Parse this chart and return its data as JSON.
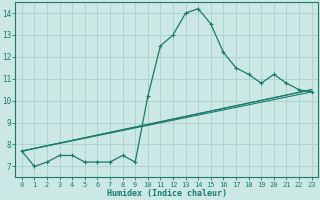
{
  "xlabel": "Humidex (Indice chaleur)",
  "ylabel": "",
  "bg_color": "#cce8e4",
  "line_color": "#1a7a6e",
  "grid_color": "#aacfcc",
  "xlim": [
    -0.5,
    23.5
  ],
  "ylim": [
    6.5,
    14.5
  ],
  "xticks": [
    0,
    1,
    2,
    3,
    4,
    5,
    6,
    7,
    8,
    9,
    10,
    11,
    12,
    13,
    14,
    15,
    16,
    17,
    18,
    19,
    20,
    21,
    22,
    23
  ],
  "yticks": [
    7,
    8,
    9,
    10,
    11,
    12,
    13,
    14
  ],
  "series": [
    {
      "x": [
        0,
        1,
        2,
        3,
        4,
        5,
        6,
        7,
        8,
        9,
        10,
        11,
        12,
        13,
        14,
        15,
        16,
        17,
        18,
        19,
        20,
        21,
        22,
        23
      ],
      "y": [
        7.7,
        7.0,
        7.2,
        7.5,
        7.5,
        7.2,
        7.2,
        7.2,
        7.5,
        7.2,
        10.2,
        12.5,
        13.0,
        14.0,
        14.2,
        13.5,
        12.2,
        11.5,
        11.2,
        10.8,
        11.2,
        10.8,
        10.5,
        10.4
      ],
      "marker": true
    },
    {
      "x": [
        0,
        23
      ],
      "y": [
        7.7,
        10.4
      ],
      "marker": false
    },
    {
      "x": [
        0,
        23
      ],
      "y": [
        7.7,
        10.5
      ],
      "marker": false
    },
    {
      "x": [
        0,
        23
      ],
      "y": [
        7.7,
        10.5
      ],
      "marker": false
    }
  ]
}
